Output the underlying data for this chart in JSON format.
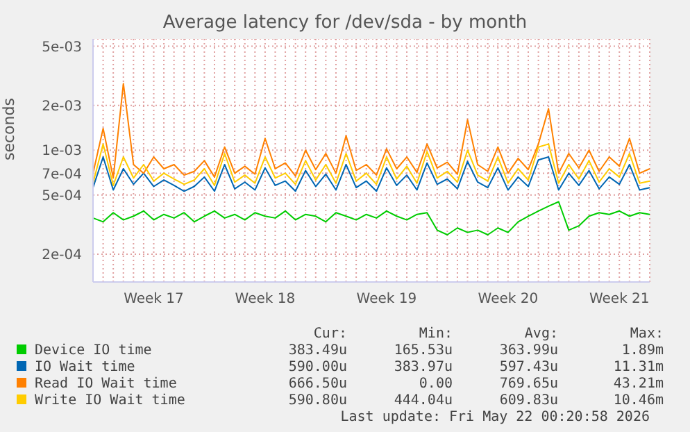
{
  "chart_data": {
    "type": "line",
    "title": "Average latency for /dev/sda - by month",
    "ylabel": "seconds",
    "log": "y",
    "grid": true,
    "legend": "bottom",
    "marker": "none",
    "line_style": "solid",
    "categories": [
      null,
      null,
      null,
      null,
      null,
      null,
      "Week 17",
      null,
      null,
      null,
      null,
      null,
      null,
      null,
      null,
      null,
      null,
      "Week 18",
      null,
      null,
      null,
      null,
      null,
      null,
      null,
      null,
      null,
      null,
      null,
      "Week 19",
      null,
      null,
      null,
      null,
      null,
      null,
      null,
      null,
      null,
      null,
      null,
      "Week 20",
      null,
      null,
      null,
      null,
      null,
      null,
      null,
      null,
      null,
      null,
      "Week 21",
      null,
      null,
      null
    ],
    "ylim": [
      0.00013,
      0.0056
    ],
    "yticks": [
      {
        "value": 0.0002,
        "label": "2e-04"
      },
      {
        "value": 0.0005,
        "label": "5e-04"
      },
      {
        "value": 0.0007,
        "label": "7e-04"
      },
      {
        "value": 0.001,
        "label": "1e-03"
      },
      {
        "value": 0.002,
        "label": "2e-03"
      },
      {
        "value": 0.005,
        "label": "5e-03"
      }
    ],
    "series": [
      {
        "name": "Device IO time",
        "color": "#00cc00",
        "values": [
          0.00035,
          0.00033,
          0.00038,
          0.00034,
          0.00036,
          0.00039,
          0.00034,
          0.00037,
          0.00035,
          0.00038,
          0.00033,
          0.00036,
          0.00039,
          0.00035,
          0.00037,
          0.00034,
          0.00038,
          0.00036,
          0.00035,
          0.00039,
          0.00034,
          0.00037,
          0.00036,
          0.00033,
          0.00038,
          0.00036,
          0.00034,
          0.00037,
          0.00035,
          0.00039,
          0.00036,
          0.00034,
          0.00037,
          0.00038,
          0.00029,
          0.00027,
          0.0003,
          0.00028,
          0.00029,
          0.00027,
          0.0003,
          0.00028,
          0.00033,
          0.00036,
          0.00039,
          0.00042,
          0.00045,
          0.00029,
          0.00031,
          0.00036,
          0.00038,
          0.00037,
          0.00039,
          0.00036,
          0.00038,
          0.00037
        ]
      },
      {
        "name": "IO Wait time",
        "color": "#0066b3",
        "values": [
          0.00056,
          0.0009,
          0.00054,
          0.00075,
          0.00059,
          0.0007,
          0.00057,
          0.00063,
          0.00058,
          0.00053,
          0.00057,
          0.00066,
          0.00053,
          0.0008,
          0.00055,
          0.00061,
          0.00054,
          0.00076,
          0.00058,
          0.00062,
          0.00053,
          0.00073,
          0.00057,
          0.00069,
          0.00054,
          0.0008,
          0.00056,
          0.00062,
          0.00053,
          0.00076,
          0.00058,
          0.00068,
          0.00054,
          0.00082,
          0.00059,
          0.00064,
          0.00055,
          0.00084,
          0.00061,
          0.00056,
          0.00076,
          0.00054,
          0.00066,
          0.00057,
          0.00086,
          0.0009,
          0.00054,
          0.0007,
          0.00058,
          0.00073,
          0.00055,
          0.00066,
          0.00059,
          0.0008,
          0.00054,
          0.00056
        ]
      },
      {
        "name": "Read IO Wait time",
        "color": "#ff8000",
        "values": [
          0.0007,
          0.0014,
          0.00065,
          0.0028,
          0.0008,
          0.0007,
          0.0009,
          0.00075,
          0.0008,
          0.00068,
          0.00072,
          0.00085,
          0.00066,
          0.00105,
          0.0007,
          0.00078,
          0.00069,
          0.0012,
          0.00075,
          0.00082,
          0.00067,
          0.001,
          0.00074,
          0.00095,
          0.0007,
          0.00125,
          0.00073,
          0.0008,
          0.00068,
          0.00102,
          0.00075,
          0.0009,
          0.00071,
          0.0011,
          0.00076,
          0.00083,
          0.00069,
          0.0016,
          0.0008,
          0.00072,
          0.00105,
          0.0007,
          0.00088,
          0.00074,
          0.0011,
          0.0019,
          0.0007,
          0.00095,
          0.00076,
          0.001,
          0.00072,
          0.0009,
          0.00078,
          0.0012,
          0.0007,
          0.00075
        ]
      },
      {
        "name": "Write IO Wait time",
        "color": "#ffcc00",
        "values": [
          0.0006,
          0.0011,
          0.00058,
          0.0009,
          0.00065,
          0.0008,
          0.00062,
          0.0007,
          0.00064,
          0.00059,
          0.00063,
          0.00075,
          0.00058,
          0.00095,
          0.00061,
          0.00068,
          0.0006,
          0.0009,
          0.00065,
          0.0007,
          0.00059,
          0.00085,
          0.00063,
          0.0008,
          0.0006,
          0.00095,
          0.00062,
          0.0007,
          0.00059,
          0.0009,
          0.00064,
          0.00078,
          0.0006,
          0.00098,
          0.00065,
          0.00072,
          0.00061,
          0.001,
          0.00068,
          0.00062,
          0.0009,
          0.0006,
          0.00075,
          0.00063,
          0.00105,
          0.0011,
          0.0006,
          0.0008,
          0.00064,
          0.00085,
          0.00061,
          0.00075,
          0.00066,
          0.00095,
          0.0006,
          0.00062
        ]
      }
    ],
    "annotations": [
      "Cur:",
      "Min:",
      "Avg:",
      "Max:",
      "383.49u",
      "165.53u",
      "363.99u",
      "1.89m",
      "590.00u",
      "383.97u",
      "597.43u",
      "11.31m",
      "666.50u",
      "0.00",
      "769.65u",
      "43.21m",
      "590.80u",
      "444.04u",
      "609.83u",
      "10.46m",
      "Last update: Fri May 22 00:20:58 2026"
    ]
  }
}
